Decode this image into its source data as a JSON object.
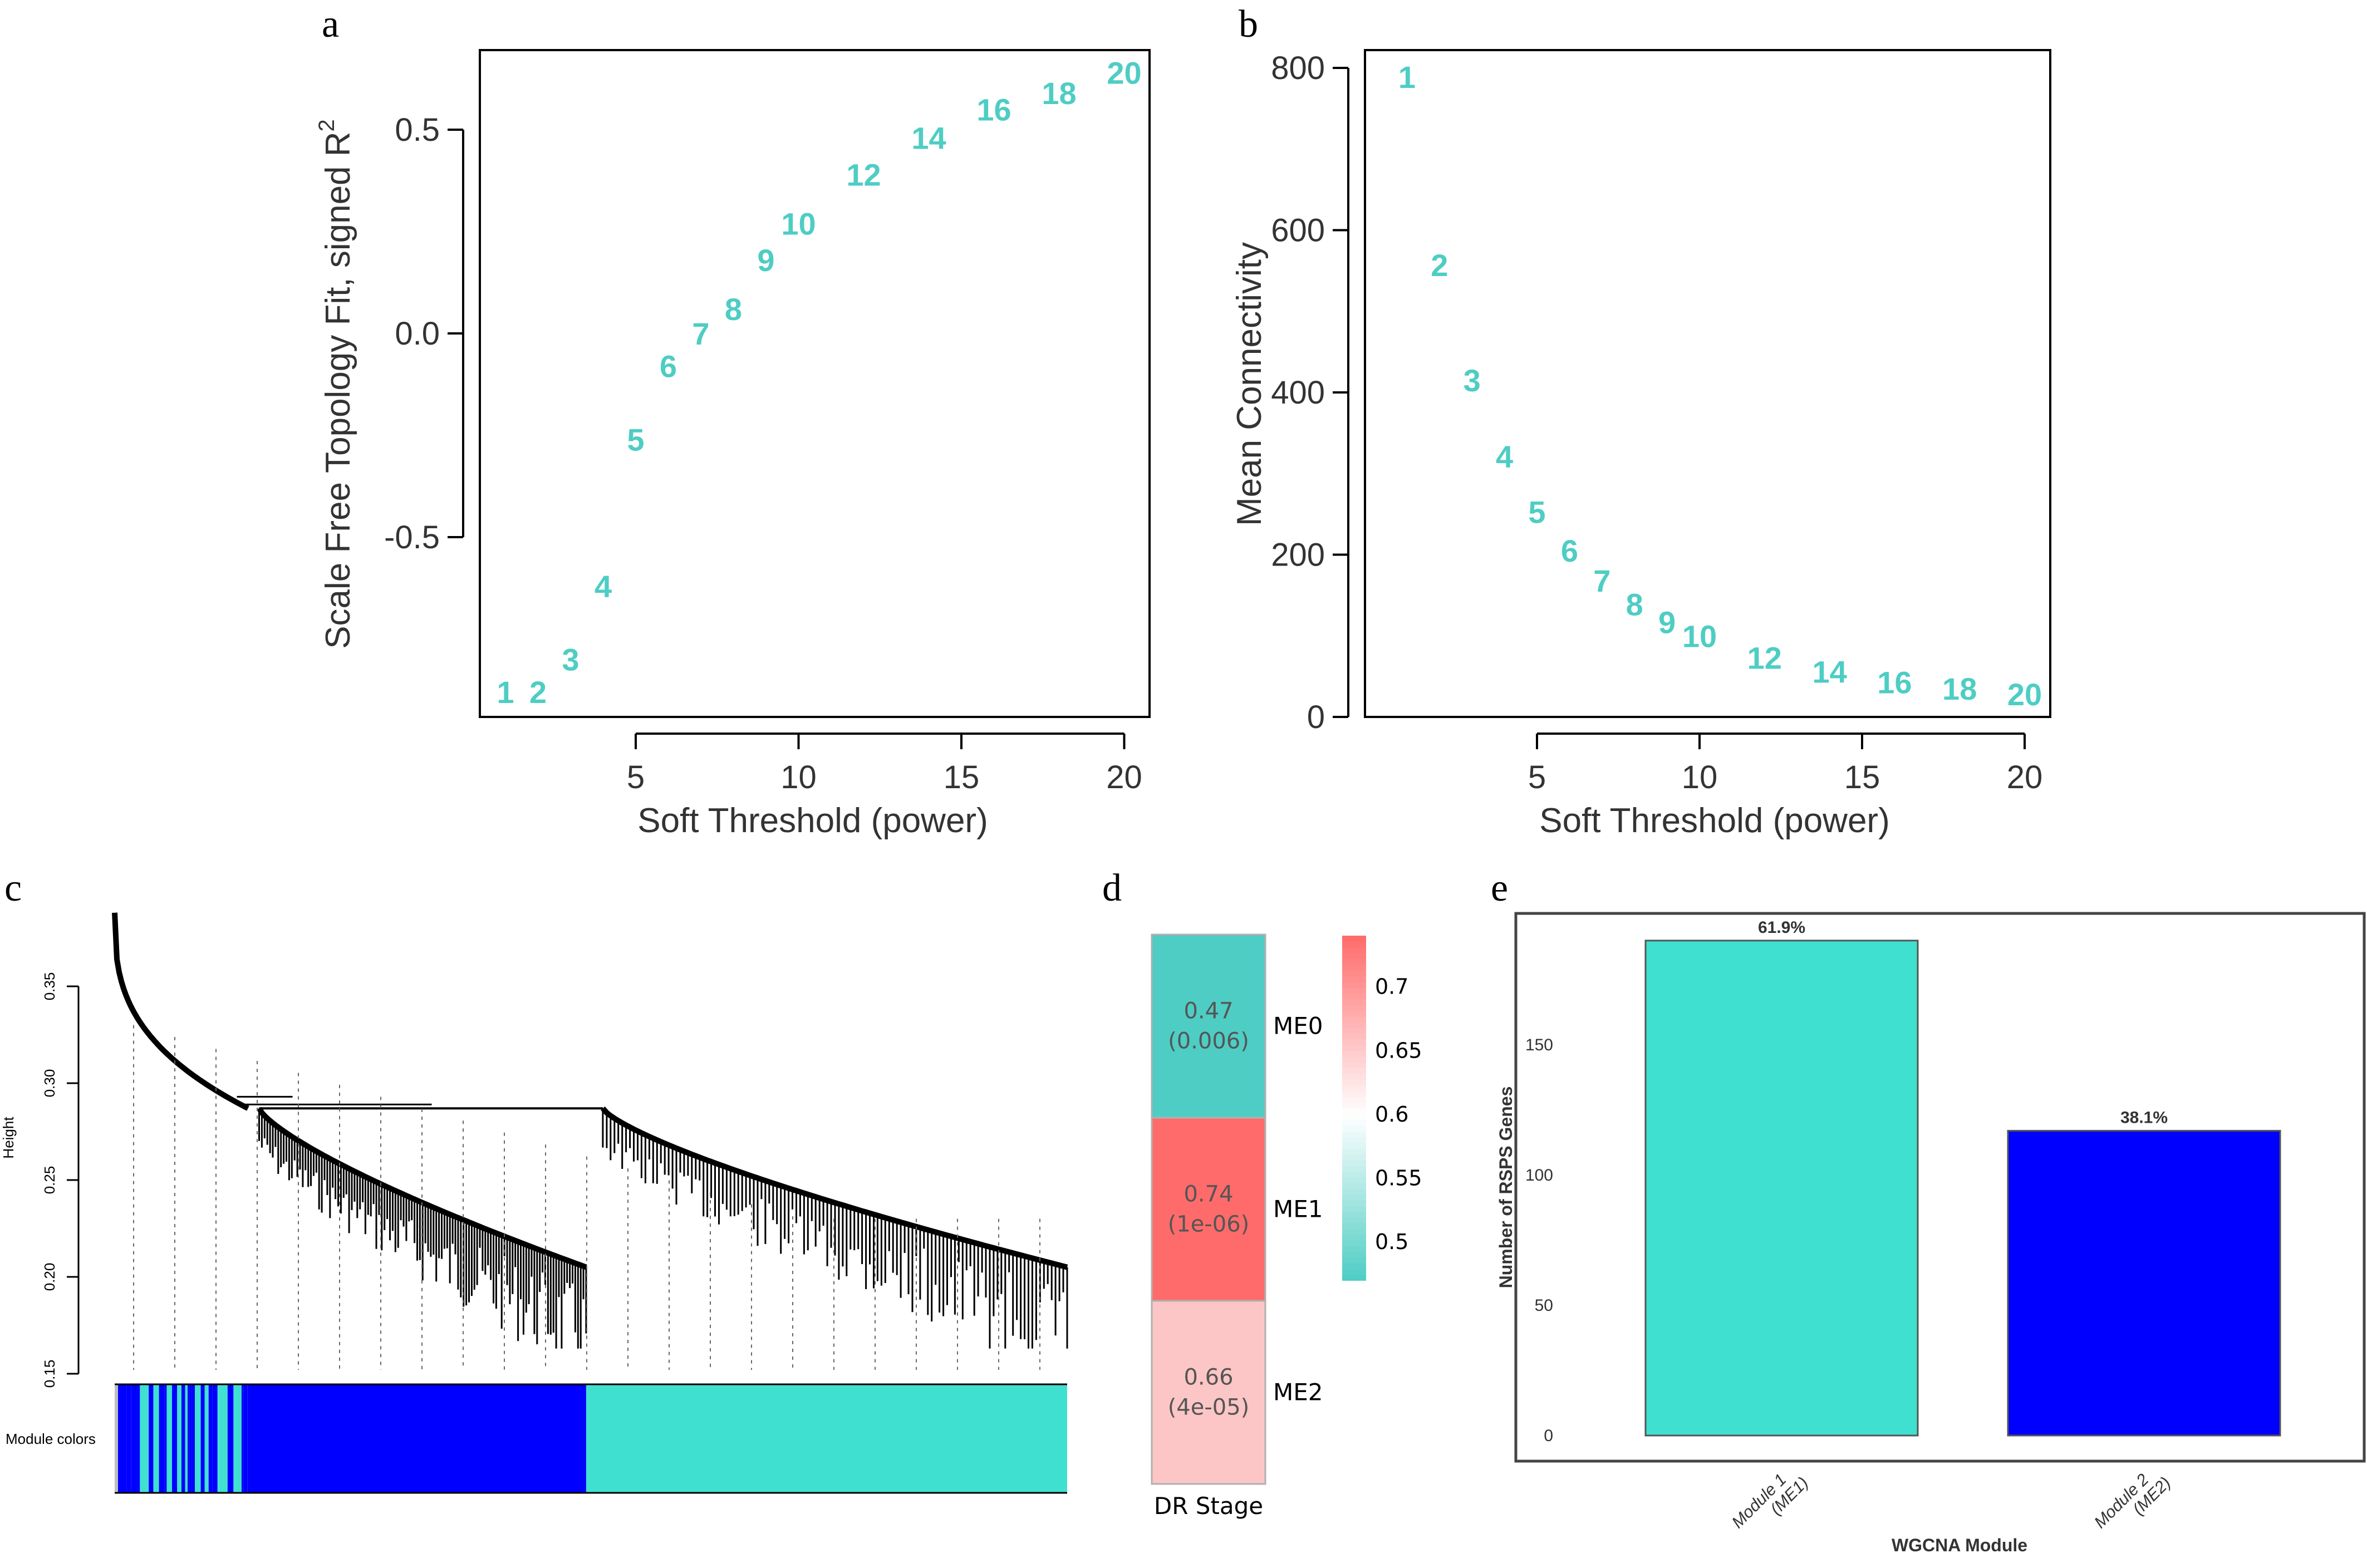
{
  "chart_data": [
    {
      "panel": "a",
      "type": "scatter",
      "title": "",
      "xlabel": "Soft Threshold (power)",
      "ylabel": "Scale Free Topology Fit, signed R^2",
      "ylabel_main": "Scale Free Topology Fit, signed R",
      "ylabel_sup": "2",
      "xlim": [
        0.2,
        20.8
      ],
      "ylim": [
        -0.94,
        0.69
      ],
      "xticks": [
        5,
        10,
        15,
        20
      ],
      "yticks": [
        -0.5,
        0.0,
        0.5
      ],
      "ytick_labels": [
        "-0.5",
        "0.0",
        "0.5"
      ],
      "marker": "text-label",
      "color": "#4ecdc4",
      "points": [
        {
          "x": 1,
          "y": -0.88,
          "label": "1"
        },
        {
          "x": 2,
          "y": -0.88,
          "label": "2"
        },
        {
          "x": 3,
          "y": -0.8,
          "label": "3"
        },
        {
          "x": 4,
          "y": -0.62,
          "label": "4"
        },
        {
          "x": 5,
          "y": -0.26,
          "label": "5"
        },
        {
          "x": 6,
          "y": -0.08,
          "label": "6"
        },
        {
          "x": 7,
          "y": 0.0,
          "label": "7"
        },
        {
          "x": 8,
          "y": 0.06,
          "label": "8"
        },
        {
          "x": 9,
          "y": 0.18,
          "label": "9"
        },
        {
          "x": 10,
          "y": 0.27,
          "label": "10"
        },
        {
          "x": 12,
          "y": 0.39,
          "label": "12"
        },
        {
          "x": 14,
          "y": 0.48,
          "label": "14"
        },
        {
          "x": 16,
          "y": 0.55,
          "label": "16"
        },
        {
          "x": 18,
          "y": 0.59,
          "label": "18"
        },
        {
          "x": 20,
          "y": 0.64,
          "label": "20"
        }
      ]
    },
    {
      "panel": "b",
      "type": "scatter",
      "title": "",
      "xlabel": "Soft Threshold (power)",
      "ylabel": "Mean Connectivity",
      "xlim": [
        0.2,
        20.8
      ],
      "ylim": [
        0,
        820
      ],
      "xticks": [
        5,
        10,
        15,
        20
      ],
      "yticks": [
        0,
        200,
        400,
        600,
        800
      ],
      "marker": "text-label",
      "color": "#4ecdc4",
      "points": [
        {
          "x": 1,
          "y": 789,
          "label": "1"
        },
        {
          "x": 2,
          "y": 557,
          "label": "2"
        },
        {
          "x": 3,
          "y": 415,
          "label": "3"
        },
        {
          "x": 4,
          "y": 321,
          "label": "4"
        },
        {
          "x": 5,
          "y": 253,
          "label": "5"
        },
        {
          "x": 6,
          "y": 205,
          "label": "6"
        },
        {
          "x": 7,
          "y": 168,
          "label": "7"
        },
        {
          "x": 8,
          "y": 139,
          "label": "8"
        },
        {
          "x": 9,
          "y": 117,
          "label": "9"
        },
        {
          "x": 10,
          "y": 100,
          "label": "10"
        },
        {
          "x": 12,
          "y": 73,
          "label": "12"
        },
        {
          "x": 14,
          "y": 56,
          "label": "14"
        },
        {
          "x": 16,
          "y": 43,
          "label": "16"
        },
        {
          "x": 18,
          "y": 35,
          "label": "18"
        },
        {
          "x": 20,
          "y": 28,
          "label": "20"
        }
      ]
    },
    {
      "panel": "c",
      "type": "dendrogram",
      "ylabel": "Height",
      "yticks": [
        0.15,
        0.2,
        0.25,
        0.3,
        0.35
      ],
      "ytick_labels": [
        "0.15",
        "0.20",
        "0.25",
        "0.30",
        "0.35"
      ],
      "ylim": [
        0.15,
        0.39
      ],
      "color_row_label": "Module colors",
      "top_merge_height": 0.287,
      "modules": [
        {
          "name": "mixed",
          "fraction": 0.14,
          "colors": [
            "#0000ff",
            "#40e0d0",
            "#bebebe"
          ]
        },
        {
          "name": "blue",
          "fraction": 0.355,
          "color": "#0000ff",
          "branch_top": 0.287,
          "branch_bottom": 0.205
        },
        {
          "name": "turquoise",
          "fraction": 0.505,
          "color": "#40e0d0",
          "branch_top": 0.287,
          "branch_bottom": 0.205
        }
      ]
    },
    {
      "panel": "d",
      "type": "heatmap",
      "xlabel": "DR Stage",
      "rows": [
        {
          "name": "ME0",
          "value": 0.47,
          "value_label": "0.47",
          "p_label": "(0.006)",
          "color": "#4ecdc4"
        },
        {
          "name": "ME1",
          "value": 0.74,
          "value_label": "0.74",
          "p_label": "(1e-06)",
          "color": "#ff6b6b"
        },
        {
          "name": "ME2",
          "value": 0.66,
          "value_label": "0.66",
          "p_label": "(4e-05)",
          "color": "#fdc6c6"
        }
      ],
      "colorbar": {
        "min": 0.47,
        "max": 0.74,
        "ticks": [
          0.5,
          0.55,
          0.6,
          0.65,
          0.7
        ],
        "tick_labels": [
          "0.5",
          "0.55",
          "0.6",
          "0.65",
          "0.7"
        ],
        "low_color": "#4ecdc4",
        "mid_color": "#ffffff",
        "high_color": "#ff6b6b"
      }
    },
    {
      "panel": "e",
      "type": "bar",
      "xlabel": "WGCNA Module",
      "ylabel": "Number of RSPS Genes",
      "ylim": [
        0,
        200
      ],
      "yticks": [
        0,
        50,
        100,
        150
      ],
      "categories": [
        "Module 1\n(ME1)",
        "Module 2\n(ME2)"
      ],
      "category_lines": [
        [
          "Module 1",
          "(ME1)"
        ],
        [
          "Module 2",
          "(ME2)"
        ]
      ],
      "values": [
        190,
        117
      ],
      "data_labels": [
        "61.9%",
        "38.1%"
      ],
      "colors": [
        "#40e0d0",
        "#0000ff"
      ]
    }
  ],
  "panels": {
    "a": {
      "tag": "a"
    },
    "b": {
      "tag": "b"
    },
    "c": {
      "tag": "c"
    },
    "d": {
      "tag": "d"
    },
    "e": {
      "tag": "e"
    }
  }
}
